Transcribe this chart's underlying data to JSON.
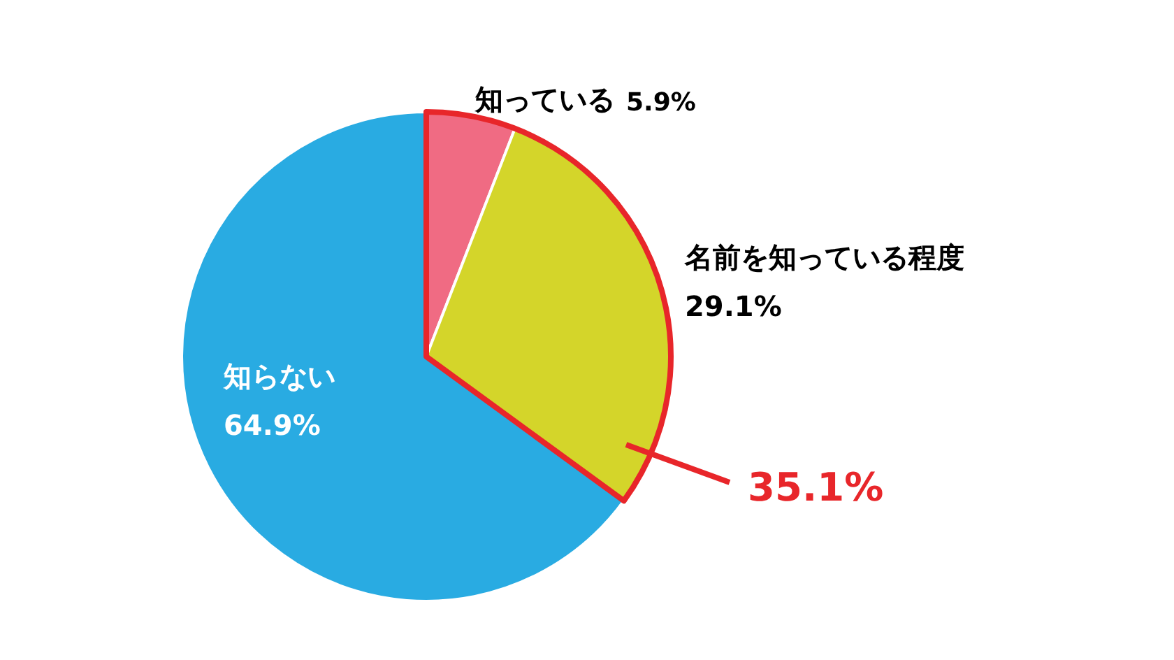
{
  "chart_data": {
    "type": "pie",
    "categories": [
      "知っている",
      "名前を知っている程度",
      "知らない"
    ],
    "values": [
      5.9,
      29.1,
      64.9
    ],
    "colors": [
      "#f06b83",
      "#d4d52a",
      "#29abe2"
    ],
    "value_labels": [
      "5.9%",
      "29.1%",
      "64.9%"
    ],
    "annotations": [
      "35.1%"
    ]
  }
}
